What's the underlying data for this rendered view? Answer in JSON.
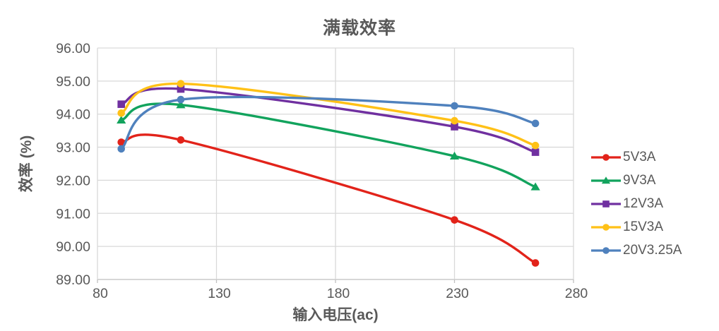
{
  "chart_data": {
    "type": "line",
    "title": "满载效率",
    "xlabel": "输入电压(ac)",
    "ylabel": "效率 (%)",
    "line_style": "smooth",
    "grid": true,
    "legend_position": "right",
    "x": [
      90,
      115,
      230,
      264
    ],
    "xlim": [
      80,
      280
    ],
    "ylim": [
      89,
      96
    ],
    "x_tick_values": [
      80,
      130,
      180,
      230,
      280
    ],
    "x_ticks": [
      "80",
      "130",
      "180",
      "230",
      "280"
    ],
    "y_tick_values": [
      96,
      95,
      94,
      93,
      92,
      91,
      90,
      89
    ],
    "y_ticks": [
      "96.00",
      "95.00",
      "94.00",
      "93.00",
      "92.00",
      "91.00",
      "90.00",
      "89.00"
    ],
    "series": [
      {
        "name": "5V3A",
        "color": "#E2231A",
        "marker": "circle",
        "values": [
          93.15,
          93.22,
          90.8,
          89.5
        ]
      },
      {
        "name": "9V3A",
        "color": "#12A35D",
        "marker": "triangle",
        "values": [
          93.82,
          94.28,
          92.73,
          91.8
        ]
      },
      {
        "name": "12V3A",
        "color": "#7030A0",
        "marker": "square",
        "values": [
          94.3,
          94.76,
          93.62,
          92.85
        ]
      },
      {
        "name": "15V3A",
        "color": "#FFC117",
        "marker": "circle",
        "values": [
          94.03,
          94.92,
          93.8,
          93.05
        ]
      },
      {
        "name": "20V3.25A",
        "color": "#4F81BD",
        "marker": "circle",
        "values": [
          92.95,
          94.44,
          94.25,
          93.72
        ]
      }
    ]
  },
  "colors": {
    "text": "#595959",
    "grid": "#D9D9D9",
    "axis": "#BFBFBF",
    "background": "#FFFFFF"
  }
}
